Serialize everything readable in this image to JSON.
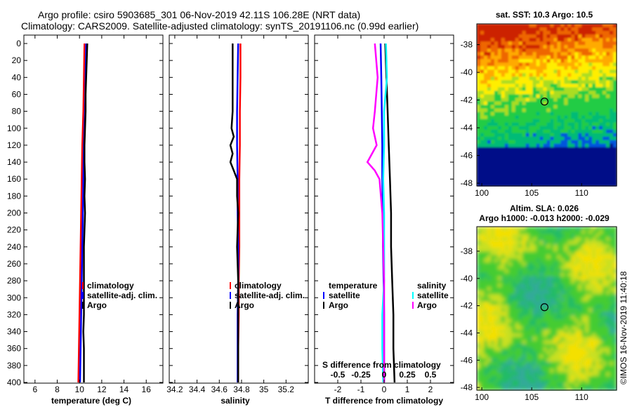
{
  "header": {
    "line1": "Argo profile: csiro 5903685_301 06-Nov-2019 42.11S 106.28E (NRT data)",
    "line2": "Climatology: CARS2009. Satellite-adjusted climatology: synTS_20191106.nc (0.99d earlier)"
  },
  "watermark": "©IMOS 16-Nov-2019 11:40:18",
  "colors": {
    "climatology": "#ff0000",
    "satellite_adj": "#0000ff",
    "argo": "#000000",
    "satellite": "#00e5ee",
    "salinity_sat": "#00ffff",
    "salinity_argo": "#ff00ff"
  },
  "chart_data": [
    {
      "type": "line",
      "id": "temperature",
      "xlabel": "temperature (deg C)",
      "ylabel": "",
      "xlim": [
        5,
        17.5
      ],
      "ylim": [
        400,
        0
      ],
      "x_ticks": [
        6,
        8,
        10,
        12,
        14,
        16
      ],
      "x_tick_labels": [
        "6",
        "8",
        "10",
        "12",
        "14",
        "16"
      ],
      "y_ticks": [
        0,
        20,
        40,
        60,
        80,
        100,
        120,
        140,
        160,
        180,
        200,
        220,
        240,
        260,
        280,
        300,
        320,
        340,
        360,
        380,
        400
      ],
      "y_tick_labels": [
        "0",
        "20",
        "40",
        "60",
        "80",
        "100",
        "120",
        "140",
        "160",
        "180",
        "200",
        "220",
        "240",
        "260",
        "280",
        "300",
        "320",
        "340",
        "360",
        "380",
        "400"
      ],
      "legend": [
        "climatology",
        "satellite-adj. clim.",
        "Argo"
      ],
      "series": [
        {
          "name": "climatology",
          "color": "#ff0000",
          "depth": [
            0,
            40,
            80,
            120,
            160,
            200,
            240,
            280,
            320,
            360,
            400
          ],
          "values": [
            10.45,
            10.4,
            10.35,
            10.25,
            10.2,
            10.15,
            10.1,
            10.05,
            10.0,
            9.95,
            9.9
          ]
        },
        {
          "name": "satellite-adj. clim.",
          "color": "#0000ff",
          "depth": [
            0,
            40,
            80,
            120,
            160,
            200,
            240,
            280,
            320,
            360,
            400
          ],
          "values": [
            10.6,
            10.55,
            10.5,
            10.4,
            10.35,
            10.3,
            10.25,
            10.2,
            10.15,
            10.1,
            10.05
          ]
        },
        {
          "name": "Argo",
          "color": "#000000",
          "depth": [
            0,
            20,
            40,
            60,
            80,
            100,
            120,
            140,
            160,
            180,
            200,
            220,
            240,
            260,
            280,
            300,
            320,
            340,
            360,
            380,
            400
          ],
          "values": [
            10.7,
            10.65,
            10.6,
            10.55,
            10.55,
            10.5,
            10.45,
            10.45,
            10.5,
            10.45,
            10.5,
            10.45,
            10.4,
            10.4,
            10.4,
            10.4,
            10.4,
            10.35,
            10.4,
            10.4,
            10.4
          ]
        }
      ]
    },
    {
      "type": "line",
      "id": "salinity",
      "xlabel": "salinity",
      "xlim": [
        34.15,
        35.4
      ],
      "ylim": [
        400,
        0
      ],
      "x_ticks": [
        34.2,
        34.4,
        34.6,
        34.8,
        35,
        35.2
      ],
      "x_tick_labels": [
        "34.2",
        "34.4",
        "34.6",
        "34.8",
        "35",
        "35.2"
      ],
      "legend": [
        "climatology",
        "satellite-adj. clim.",
        "Argo"
      ],
      "series": [
        {
          "name": "climatology",
          "color": "#ff0000",
          "depth": [
            0,
            40,
            80,
            120,
            160,
            200,
            240,
            280,
            320,
            360,
            400
          ],
          "values": [
            34.79,
            34.79,
            34.785,
            34.785,
            34.78,
            34.78,
            34.78,
            34.775,
            34.775,
            34.77,
            34.77
          ]
        },
        {
          "name": "satellite-adj. clim.",
          "color": "#0000ff",
          "depth": [
            0,
            40,
            80,
            120,
            160,
            200,
            240,
            280,
            320,
            360,
            400
          ],
          "values": [
            34.77,
            34.765,
            34.76,
            34.76,
            34.765,
            34.765,
            34.77,
            34.77,
            34.765,
            34.765,
            34.765
          ]
        },
        {
          "name": "Argo",
          "color": "#000000",
          "depth": [
            0,
            20,
            40,
            60,
            80,
            100,
            110,
            120,
            130,
            140,
            150,
            160,
            180,
            200,
            240,
            280,
            320,
            360,
            400
          ],
          "values": [
            34.72,
            34.72,
            34.72,
            34.72,
            34.72,
            34.71,
            34.73,
            34.7,
            34.72,
            34.7,
            34.73,
            34.76,
            34.76,
            34.77,
            34.76,
            34.77,
            34.77,
            34.77,
            34.77
          ]
        }
      ]
    },
    {
      "type": "line",
      "id": "difference",
      "xlabel": "T difference from climatology",
      "x_top_label": "S difference from climatology",
      "xlim": [
        -3,
        3
      ],
      "ylim": [
        400,
        0
      ],
      "x_ticks": [
        -2,
        -1,
        0,
        1,
        2
      ],
      "x_tick_labels": [
        "-2",
        "-1",
        "0",
        "1",
        "2"
      ],
      "x2_tick_labels": [
        "-0.5",
        "-0.25",
        "0",
        "0.25",
        "0.5"
      ],
      "legend_temperature": {
        "title": "temperature",
        "items": [
          "satellite",
          "Argo"
        ]
      },
      "legend_salinity": {
        "title": "salinity",
        "items": [
          "satellite",
          "Argo"
        ]
      },
      "series": [
        {
          "name": "T satellite",
          "color": "#0000ff",
          "depth": [
            0,
            40,
            80,
            120,
            160,
            200,
            240,
            280,
            320,
            360,
            400
          ],
          "values": [
            -0.15,
            -0.12,
            -0.1,
            -0.08,
            -0.08,
            -0.05,
            -0.05,
            -0.02,
            0,
            0,
            0
          ]
        },
        {
          "name": "T Argo",
          "color": "#000000",
          "depth": [
            0,
            40,
            80,
            120,
            160,
            200,
            240,
            280,
            320,
            360,
            400
          ],
          "values": [
            0.05,
            0.1,
            0.15,
            0.2,
            0.25,
            0.3,
            0.3,
            0.35,
            0.4,
            0.4,
            0.45
          ]
        },
        {
          "name": "S satellite",
          "color": "#00ffff",
          "depth": [
            0,
            40,
            80,
            120,
            160,
            200,
            240,
            280,
            320,
            360,
            400
          ],
          "values": [
            0.02,
            0.03,
            0.0,
            0.0,
            -0.01,
            0.0,
            0.0,
            0.0,
            -0.02,
            -0.02,
            -0.01
          ]
        },
        {
          "name": "S Argo",
          "color": "#ff00ff",
          "depth": [
            0,
            40,
            80,
            100,
            120,
            140,
            150,
            160,
            200,
            240,
            280,
            320,
            360,
            400
          ],
          "values": [
            -0.1,
            -0.07,
            -0.1,
            -0.12,
            -0.08,
            -0.18,
            -0.1,
            -0.05,
            -0.02,
            -0.01,
            0.0,
            0.0,
            0.0,
            0.0
          ]
        }
      ]
    },
    {
      "type": "heatmap",
      "id": "sst-map",
      "title": "sat. SST: 10.3 Argo: 10.5",
      "xlim": [
        99.5,
        113.5
      ],
      "ylim": [
        -48.2,
        -36.5
      ],
      "x_ticks": [
        100,
        105,
        110
      ],
      "x_tick_labels": [
        "100",
        "105",
        "110"
      ],
      "y_ticks": [
        -38,
        -40,
        -42,
        -44,
        -46,
        -48
      ],
      "y_tick_labels": [
        "-38",
        "-40",
        "-42",
        "-44",
        "-46",
        "-48"
      ],
      "marker": {
        "lon": 106.28,
        "lat": -42.11
      }
    },
    {
      "type": "heatmap",
      "id": "sla-map",
      "title": "Altim. SLA: 0.026",
      "subtitle": "Argo h1000: -0.013 h2000: -0.029",
      "xlim": [
        99.5,
        113.5
      ],
      "ylim": [
        -48.2,
        -36.2
      ],
      "x_ticks": [
        100,
        105,
        110
      ],
      "x_tick_labels": [
        "100",
        "105",
        "110"
      ],
      "y_ticks": [
        -38,
        -40,
        -42,
        -44,
        -46,
        -48
      ],
      "y_tick_labels": [
        "-38",
        "-40",
        "-42",
        "-44",
        "-46",
        "-48"
      ],
      "marker": {
        "lon": 106.28,
        "lat": -42.11
      }
    }
  ]
}
